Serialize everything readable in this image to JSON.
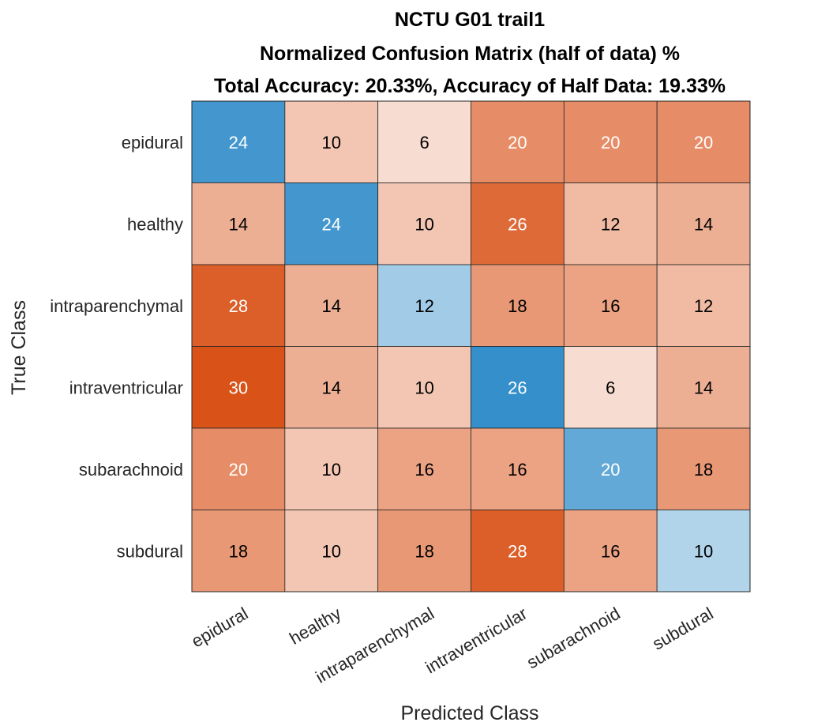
{
  "chart_data": {
    "type": "heatmap",
    "title_lines": [
      "NCTU G01 trail1",
      "Normalized Confusion Matrix (half of data) %",
      "Total Accuracy: 20.33%, Accuracy of Half Data: 19.33%"
    ],
    "xlabel": "Predicted Class",
    "ylabel": "True Class",
    "row_labels": [
      "epidural",
      "healthy",
      "intraparenchymal",
      "intraventricular",
      "subarachnoid",
      "subdural"
    ],
    "col_labels": [
      "epidural",
      "healthy",
      "intraparenchymal",
      "intraventricular",
      "subarachnoid",
      "subdural"
    ],
    "values": [
      [
        24,
        10,
        6,
        20,
        20,
        20
      ],
      [
        14,
        24,
        10,
        26,
        12,
        14
      ],
      [
        28,
        14,
        12,
        18,
        16,
        12
      ],
      [
        30,
        14,
        10,
        26,
        6,
        14
      ],
      [
        20,
        10,
        16,
        16,
        20,
        18
      ],
      [
        18,
        10,
        18,
        28,
        16,
        10
      ]
    ],
    "value_range": [
      0,
      30
    ],
    "colors": {
      "diagonal": "#0072bd",
      "off_diagonal": "#d95319",
      "background": "#ffffff",
      "grid": "#262626"
    }
  }
}
